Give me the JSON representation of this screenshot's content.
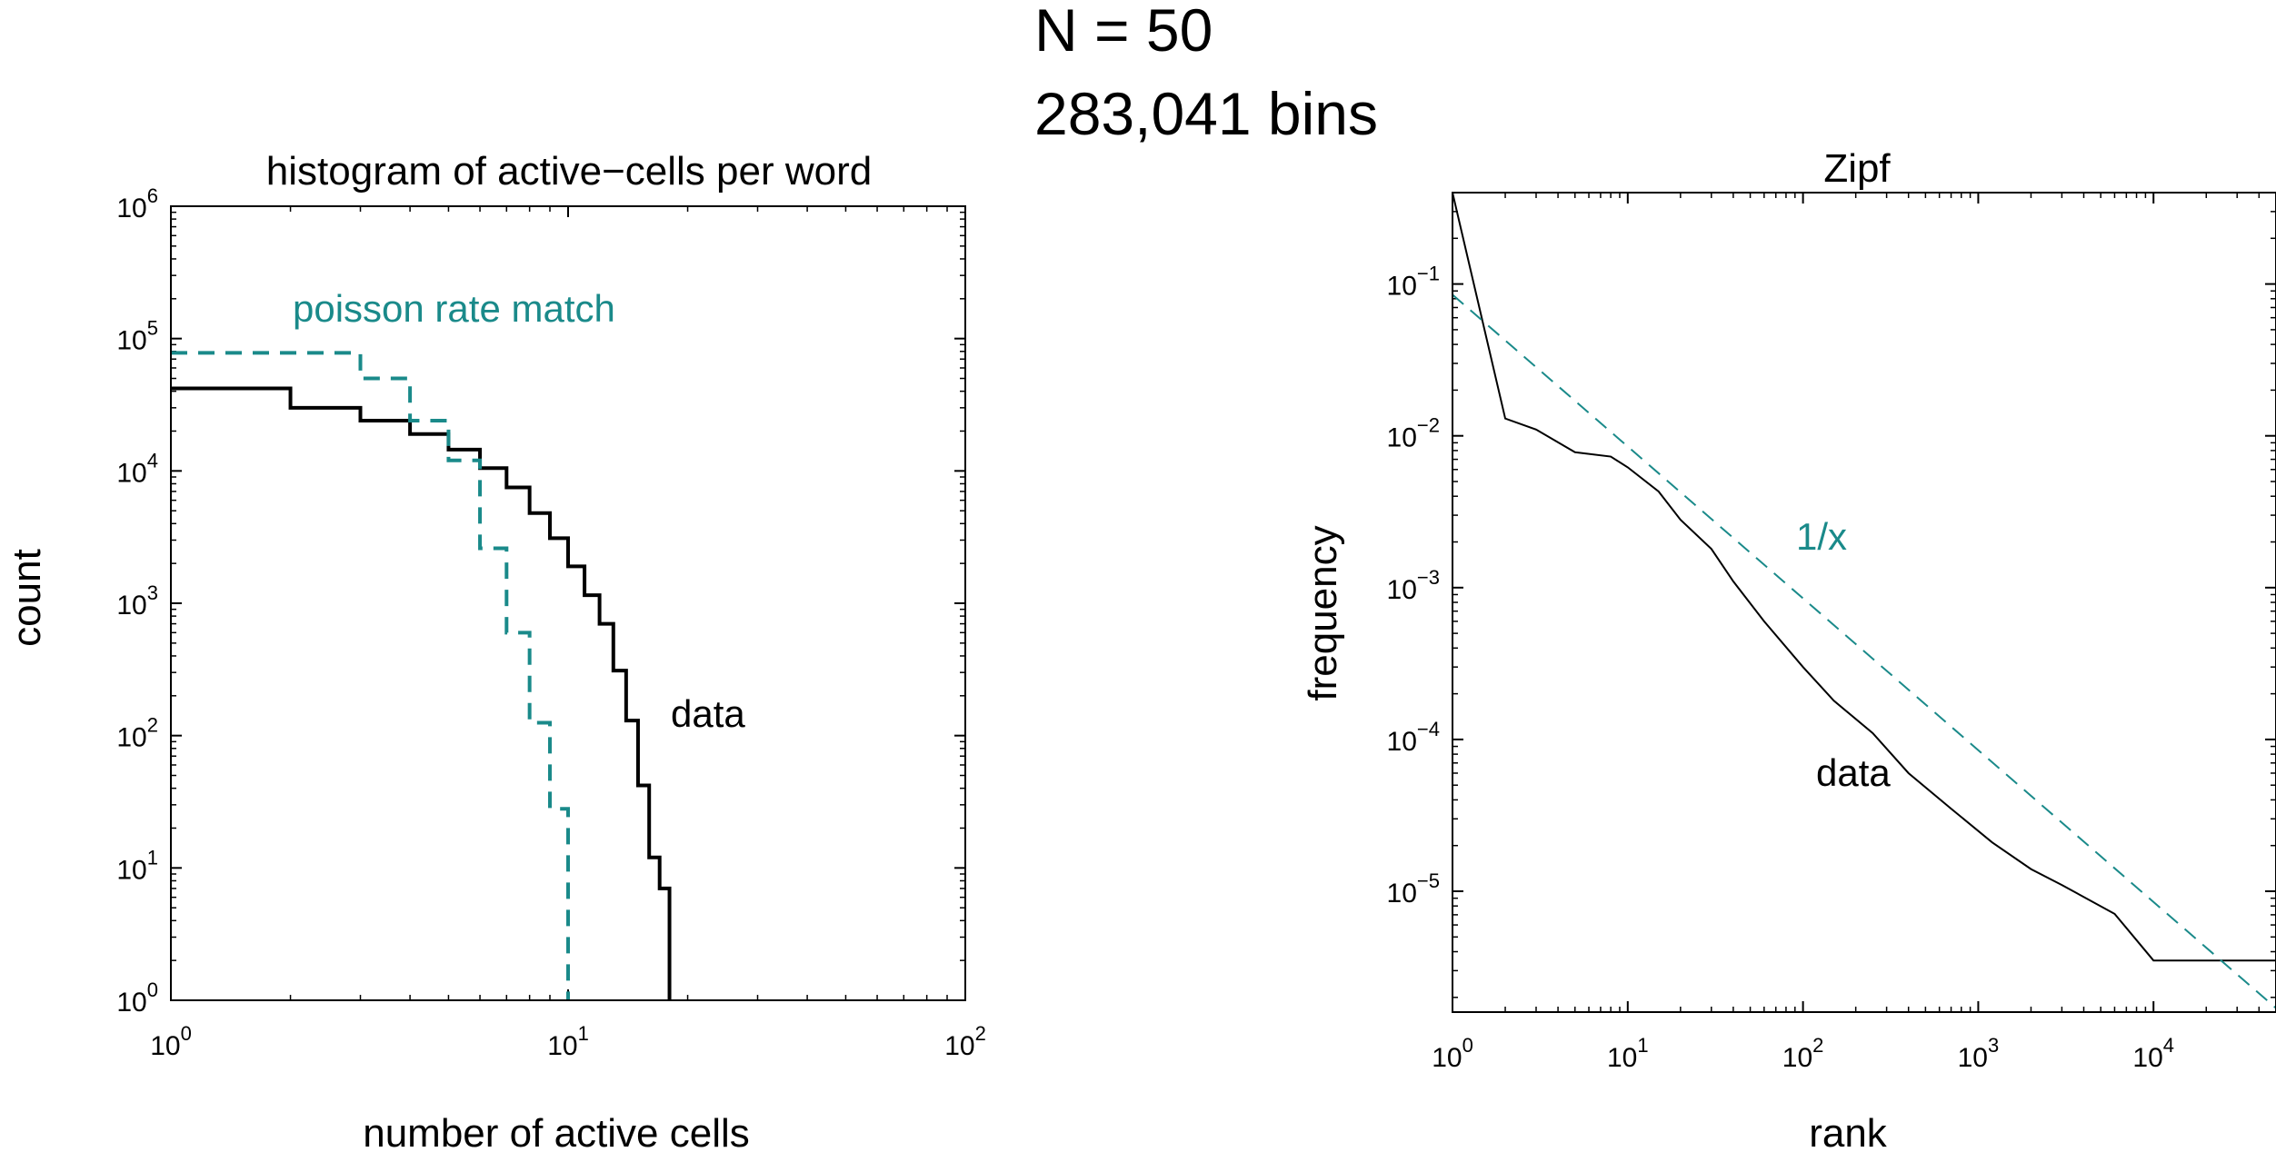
{
  "header": {
    "line1": "N = 50",
    "line2": "283,041 bins"
  },
  "chart_data": [
    {
      "type": "line",
      "title": "histogram of active−cells per word",
      "xlabel": "number of active cells",
      "ylabel": "count",
      "xscale": "log",
      "yscale": "log",
      "xlim": [
        1,
        100
      ],
      "ylim": [
        1,
        1000000
      ],
      "xticks": [
        1,
        10,
        100
      ],
      "xtick_labels": [
        {
          "base": "10",
          "exp": "0"
        },
        {
          "base": "10",
          "exp": "1"
        },
        {
          "base": "10",
          "exp": "2"
        }
      ],
      "yticks": [
        1,
        10,
        100,
        1000,
        10000,
        100000,
        1000000
      ],
      "ytick_labels": [
        {
          "base": "10",
          "exp": "0"
        },
        {
          "base": "10",
          "exp": "1"
        },
        {
          "base": "10",
          "exp": "2"
        },
        {
          "base": "10",
          "exp": "3"
        },
        {
          "base": "10",
          "exp": "4"
        },
        {
          "base": "10",
          "exp": "5"
        },
        {
          "base": "10",
          "exp": "6"
        }
      ],
      "grid": false,
      "series": [
        {
          "name": "data",
          "style": "solid",
          "color": "#000000",
          "drawstyle": "steps",
          "x": [
            1,
            2,
            3,
            4,
            5,
            6,
            7,
            8,
            9,
            10,
            11,
            12,
            13,
            14,
            15,
            16,
            17,
            18
          ],
          "y": [
            42000,
            30000,
            24000,
            19000,
            14500,
            10500,
            7500,
            4800,
            3100,
            1900,
            1150,
            700,
            310,
            130,
            42,
            12,
            7,
            1
          ]
        },
        {
          "name": "poisson rate match",
          "style": "dashed",
          "color": "#1a8a8a",
          "drawstyle": "steps",
          "x": [
            1,
            2,
            3,
            4,
            5,
            6,
            7,
            8,
            9,
            10
          ],
          "y": [
            78000,
            78000,
            50000,
            24000,
            12000,
            2600,
            600,
            125,
            28,
            1
          ]
        }
      ],
      "annotations": [
        {
          "text": "poisson rate match",
          "color": "#1a8a8a"
        },
        {
          "text": "data",
          "color": "#000000"
        }
      ]
    },
    {
      "type": "line",
      "title": "Zipf",
      "xlabel": "rank",
      "ylabel": "frequency",
      "xscale": "log",
      "yscale": "log",
      "xlim": [
        1,
        50000
      ],
      "ylim": [
        1.6e-06,
        0.4
      ],
      "xticks": [
        1,
        10,
        100,
        1000,
        10000
      ],
      "xtick_labels": [
        {
          "base": "10",
          "exp": "0"
        },
        {
          "base": "10",
          "exp": "1"
        },
        {
          "base": "10",
          "exp": "2"
        },
        {
          "base": "10",
          "exp": "3"
        },
        {
          "base": "10",
          "exp": "4"
        }
      ],
      "yticks": [
        0.1,
        0.01,
        0.001,
        0.0001,
        1e-05
      ],
      "ytick_labels": [
        {
          "base": "10",
          "exp": "−1"
        },
        {
          "base": "10",
          "exp": "−2"
        },
        {
          "base": "10",
          "exp": "−3"
        },
        {
          "base": "10",
          "exp": "−4"
        },
        {
          "base": "10",
          "exp": "−5"
        }
      ],
      "grid": false,
      "series": [
        {
          "name": "data",
          "style": "solid",
          "color": "#000000",
          "x": [
            1,
            2,
            3,
            5,
            8,
            10,
            15,
            20,
            30,
            40,
            60,
            100,
            150,
            250,
            400,
            700,
            1200,
            2000,
            3000,
            6000,
            10000,
            50000
          ],
          "y": [
            0.4,
            0.013,
            0.011,
            0.0078,
            0.0073,
            0.0062,
            0.0043,
            0.0028,
            0.0018,
            0.0011,
            0.0006,
            0.0003,
            0.00018,
            0.00011,
            6e-05,
            3.5e-05,
            2.1e-05,
            1.4e-05,
            1.1e-05,
            7.1e-06,
            3.5e-06,
            3.5e-06
          ]
        },
        {
          "name": "1/x",
          "style": "dashed",
          "color": "#1a8a8a",
          "x": [
            1,
            50000
          ],
          "y": [
            0.085,
            1.7e-06
          ]
        }
      ],
      "annotations": [
        {
          "text": "1/x",
          "color": "#1a8a8a"
        },
        {
          "text": "data",
          "color": "#000000"
        }
      ]
    }
  ]
}
